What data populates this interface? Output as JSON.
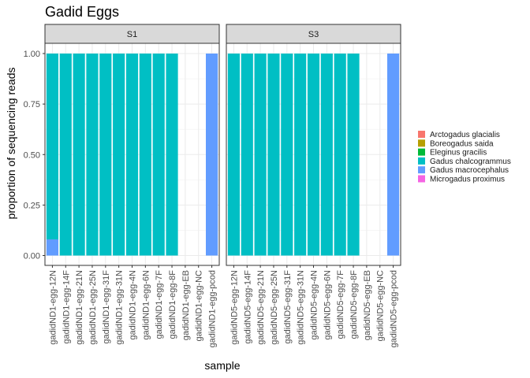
{
  "chart_data": {
    "type": "bar",
    "stacked": true,
    "title": "Gadid Eggs",
    "xlabel": "sample",
    "ylabel": "proportion of sequencing reads",
    "ylim": [
      0,
      1.1
    ],
    "yticks": [
      "0.00",
      "0.25",
      "0.50",
      "0.75",
      "1.00"
    ],
    "grid": true,
    "legend_position": "right",
    "legend": [
      {
        "name": "Arctogadus glacialis",
        "color": "#F8766D"
      },
      {
        "name": "Boreogadus saida",
        "color": "#B79F00"
      },
      {
        "name": "Eleginus gracilis",
        "color": "#00BA38"
      },
      {
        "name": "Gadus chalcogrammus",
        "color": "#00BFC4"
      },
      {
        "name": "Gadus macrocephalus",
        "color": "#619CFF"
      },
      {
        "name": "Microgadus proximus",
        "color": "#F564E3"
      }
    ],
    "facets": [
      {
        "label": "S1",
        "categories": [
          "gadidND1-egg-12N",
          "gadidND1-egg-14F",
          "gadidND1-egg-21N",
          "gadidND1-egg-25N",
          "gadidND1-egg-31F",
          "gadidND1-egg-31N",
          "gadidND1-egg-4N",
          "gadidND1-egg-6N",
          "gadidND1-egg-7F",
          "gadidND1-egg-8F",
          "gadidND1-egg-EB",
          "gadidND1-egg-NC",
          "gadidND1-egg-pcod"
        ],
        "series": [
          {
            "name": "Gadus chalcogrammus",
            "values": [
              0.92,
              1,
              1,
              1,
              1,
              1,
              1,
              1,
              1,
              1,
              0,
              0,
              0
            ]
          },
          {
            "name": "Gadus macrocephalus",
            "values": [
              0.08,
              0,
              0,
              0,
              0,
              0,
              0,
              0,
              0,
              0,
              0,
              0,
              1
            ]
          }
        ]
      },
      {
        "label": "S3",
        "categories": [
          "gadidND5-egg-12N",
          "gadidND5-egg-14F",
          "gadidND5-egg-21N",
          "gadidND5-egg-25N",
          "gadidND5-egg-31F",
          "gadidND5-egg-31N",
          "gadidND5-egg-4N",
          "gadidND5-egg-6N",
          "gadidND5-egg-7F",
          "gadidND5-egg-8F",
          "gadidND5-egg-EB",
          "gadidND5-egg-NC",
          "gadidND5-egg-pcod"
        ],
        "series": [
          {
            "name": "Gadus chalcogrammus",
            "values": [
              1,
              1,
              1,
              1,
              1,
              1,
              1,
              1,
              1,
              1,
              0,
              0,
              0
            ]
          },
          {
            "name": "Gadus macrocephalus",
            "values": [
              0,
              0,
              0,
              0,
              0,
              0,
              0,
              0,
              0,
              0,
              0,
              0,
              1
            ]
          }
        ]
      }
    ]
  }
}
